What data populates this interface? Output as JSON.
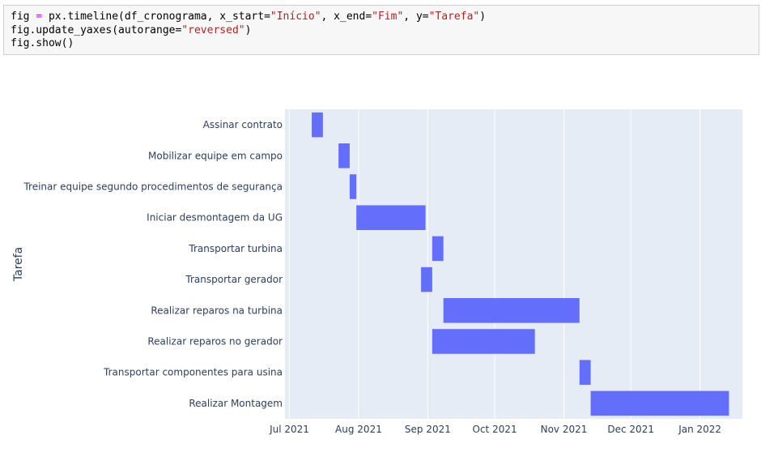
{
  "code": {
    "line1": {
      "p1": "fig ",
      "op": "=",
      "p2": " px.timeline(df_cronograma, x_start=",
      "s1": "\"Início\"",
      "p3": ", x_end=",
      "s2": "\"Fim\"",
      "p4": ", y=",
      "s3": "\"Tarefa\"",
      "p5": ")"
    },
    "line2": {
      "p1": "fig.update_yaxes(autorange=",
      "s1": "\"reversed\"",
      "p2": ")"
    },
    "line3": "fig.show()"
  },
  "colors": {
    "bar": "#636efa",
    "plot_bg": "#e5ecf6",
    "grid": "#ffffff",
    "text": "#2a3f5f"
  },
  "chart_data": {
    "type": "timeline",
    "ylabel": "Tarefa",
    "y_reversed": true,
    "grid": true,
    "xlim": [
      "2021-06-29",
      "2022-01-20"
    ],
    "x_ticks": [
      {
        "date": "2021-07-01",
        "label": "Jul 2021"
      },
      {
        "date": "2021-08-01",
        "label": "Aug 2021"
      },
      {
        "date": "2021-09-01",
        "label": "Sep 2021"
      },
      {
        "date": "2021-10-01",
        "label": "Oct 2021"
      },
      {
        "date": "2021-11-01",
        "label": "Nov 2021"
      },
      {
        "date": "2021-12-01",
        "label": "Dec 2021"
      },
      {
        "date": "2022-01-01",
        "label": "Jan 2022"
      }
    ],
    "tasks": [
      {
        "name": "Assinar contrato",
        "start": "2021-07-11",
        "end": "2021-07-16"
      },
      {
        "name": "Mobilizar equipe em campo",
        "start": "2021-07-23",
        "end": "2021-07-28"
      },
      {
        "name": "Treinar equipe segundo procedimentos de segurança",
        "start": "2021-07-28",
        "end": "2021-07-31"
      },
      {
        "name": "Iniciar desmontagem  da UG",
        "start": "2021-07-31",
        "end": "2021-08-31"
      },
      {
        "name": "Transportar  turbina",
        "start": "2021-09-03",
        "end": "2021-09-08"
      },
      {
        "name": "Transportar gerador",
        "start": "2021-08-29",
        "end": "2021-09-03"
      },
      {
        "name": "Realizar reparos na turbina",
        "start": "2021-09-08",
        "end": "2021-11-08"
      },
      {
        "name": "Realizar  reparos no gerador",
        "start": "2021-09-03",
        "end": "2021-10-19"
      },
      {
        "name": "Transportar componentes para usina",
        "start": "2021-11-08",
        "end": "2021-11-13"
      },
      {
        "name": "Realizar Montagem",
        "start": "2021-11-13",
        "end": "2022-01-14"
      }
    ]
  }
}
